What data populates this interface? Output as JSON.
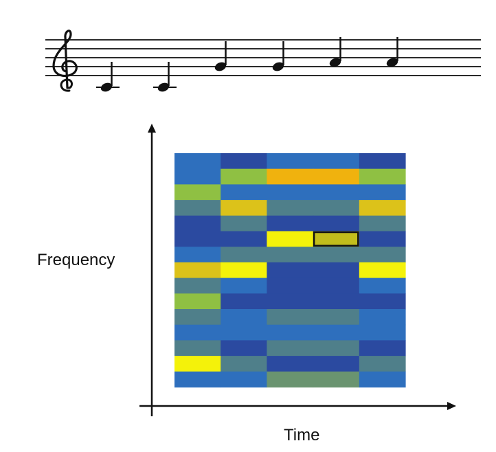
{
  "labels": {
    "y_axis": "Frequency",
    "x_axis": "Time"
  },
  "staff": {
    "clef": "treble",
    "notes": [
      {
        "pitch": "C4"
      },
      {
        "pitch": "C4"
      },
      {
        "pitch": "G4"
      },
      {
        "pitch": "G4"
      },
      {
        "pitch": "A4"
      },
      {
        "pitch": "A4"
      }
    ]
  },
  "spectrogram": {
    "time_columns": 5,
    "frequency_rows": 15,
    "colors": {
      "deep_blue": "#2b4aa0",
      "blue": "#2e6fbd",
      "teal": "#4f7f8a",
      "green": "#8fc043",
      "sage": "#6a9470",
      "gold": "#dcc21a",
      "orange": "#f0b20e",
      "yellow": "#f4f20a",
      "olive": "#c2bd1c"
    },
    "highlighted_cell": {
      "row": 5,
      "col": 3
    },
    "grid": [
      [
        "blue",
        "deep_blue",
        "blue",
        "blue",
        "deep_blue"
      ],
      [
        "blue",
        "green",
        "orange",
        "orange",
        "green"
      ],
      [
        "green",
        "blue",
        "blue",
        "blue",
        "blue"
      ],
      [
        "teal",
        "gold",
        "teal",
        "teal",
        "gold"
      ],
      [
        "deep_blue",
        "teal",
        "deep_blue",
        "deep_blue",
        "teal"
      ],
      [
        "deep_blue",
        "deep_blue",
        "yellow",
        "olive",
        "deep_blue"
      ],
      [
        "blue",
        "teal",
        "teal",
        "teal",
        "teal"
      ],
      [
        "gold",
        "yellow",
        "deep_blue",
        "deep_blue",
        "yellow"
      ],
      [
        "teal",
        "blue",
        "deep_blue",
        "deep_blue",
        "blue"
      ],
      [
        "green",
        "deep_blue",
        "deep_blue",
        "deep_blue",
        "deep_blue"
      ],
      [
        "teal",
        "blue",
        "teal",
        "teal",
        "blue"
      ],
      [
        "blue",
        "blue",
        "blue",
        "blue",
        "blue"
      ],
      [
        "teal",
        "deep_blue",
        "teal",
        "teal",
        "deep_blue"
      ],
      [
        "yellow",
        "teal",
        "deep_blue",
        "deep_blue",
        "teal"
      ],
      [
        "blue",
        "blue",
        "sage",
        "sage",
        "blue"
      ]
    ]
  }
}
